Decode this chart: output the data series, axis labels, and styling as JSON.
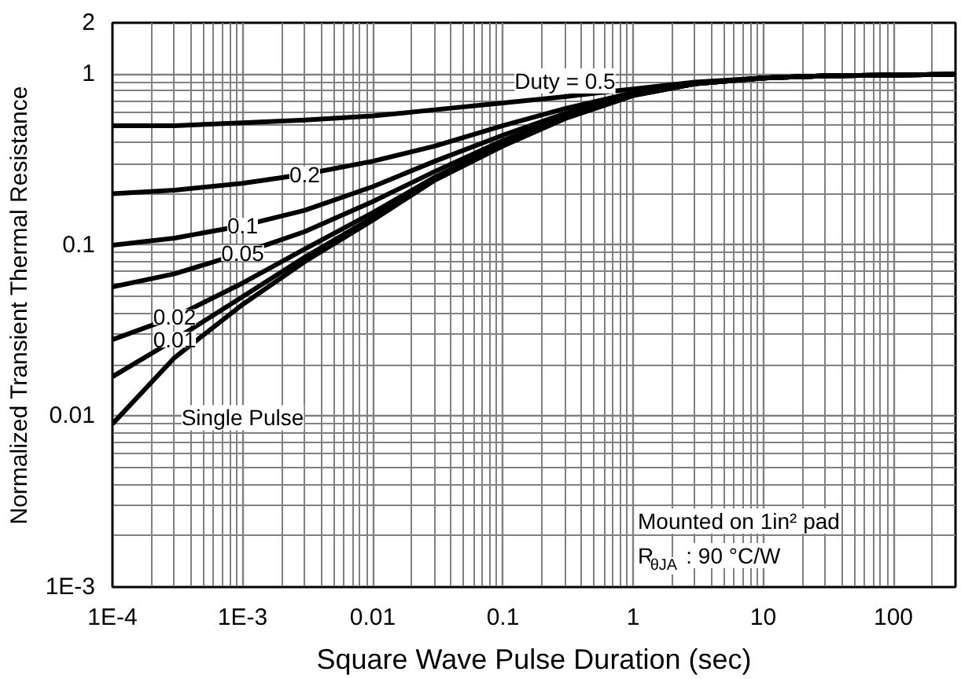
{
  "chart_data": {
    "type": "line",
    "xlabel": "Square Wave Pulse Duration (sec)",
    "ylabel": "Normalized Transient Thermal Resistance",
    "log": "xy",
    "grid": true,
    "line_style": "solid",
    "marker": "none",
    "xlim": [
      0.0001,
      300
    ],
    "ylim": [
      0.001,
      2
    ],
    "xticks": [
      {
        "value": 0.0001,
        "label": "1E-4"
      },
      {
        "value": 0.001,
        "label": "1E-3"
      },
      0.01,
      0.1,
      1,
      10,
      100
    ],
    "yticks": [
      {
        "value": 0.001,
        "label": "1E-3"
      },
      0.01,
      0.1,
      1,
      2
    ],
    "x": [
      0.0001,
      0.0003,
      0.001,
      0.003,
      0.01,
      0.03,
      0.1,
      0.3,
      1,
      3,
      10,
      30,
      100,
      300
    ],
    "series": [
      {
        "name": "Duty = 0.5",
        "color": "#000000",
        "values": [
          0.5,
          0.5,
          0.52,
          0.54,
          0.57,
          0.62,
          0.68,
          0.74,
          0.82,
          0.9,
          0.95,
          0.98,
          0.99,
          1.0
        ]
      },
      {
        "name": "0.2",
        "color": "#000000",
        "values": [
          0.2,
          0.21,
          0.23,
          0.26,
          0.31,
          0.38,
          0.5,
          0.63,
          0.78,
          0.89,
          0.95,
          0.98,
          0.99,
          1.0
        ]
      },
      {
        "name": "0.1",
        "color": "#000000",
        "values": [
          0.1,
          0.11,
          0.13,
          0.16,
          0.22,
          0.31,
          0.44,
          0.59,
          0.77,
          0.88,
          0.95,
          0.98,
          0.99,
          1.0
        ]
      },
      {
        "name": "0.05",
        "color": "#000000",
        "values": [
          0.057,
          0.068,
          0.09,
          0.12,
          0.18,
          0.27,
          0.41,
          0.57,
          0.76,
          0.88,
          0.95,
          0.98,
          0.99,
          1.0
        ]
      },
      {
        "name": "0.02",
        "color": "#000000",
        "values": [
          0.028,
          0.038,
          0.06,
          0.095,
          0.155,
          0.25,
          0.39,
          0.56,
          0.76,
          0.88,
          0.95,
          0.98,
          0.99,
          1.0
        ]
      },
      {
        "name": "0.01",
        "color": "#000000",
        "values": [
          0.017,
          0.028,
          0.05,
          0.085,
          0.145,
          0.245,
          0.385,
          0.555,
          0.75,
          0.88,
          0.95,
          0.98,
          0.99,
          1.0
        ]
      },
      {
        "name": "Single Pulse",
        "color": "#000000",
        "values": [
          0.009,
          0.022,
          0.045,
          0.08,
          0.14,
          0.24,
          0.38,
          0.55,
          0.75,
          0.88,
          0.95,
          0.98,
          0.99,
          1.0
        ]
      }
    ],
    "annotations": [
      "Mounted on 1in² pad",
      "R$_{θJA}$ : 90 °C/W"
    ]
  }
}
